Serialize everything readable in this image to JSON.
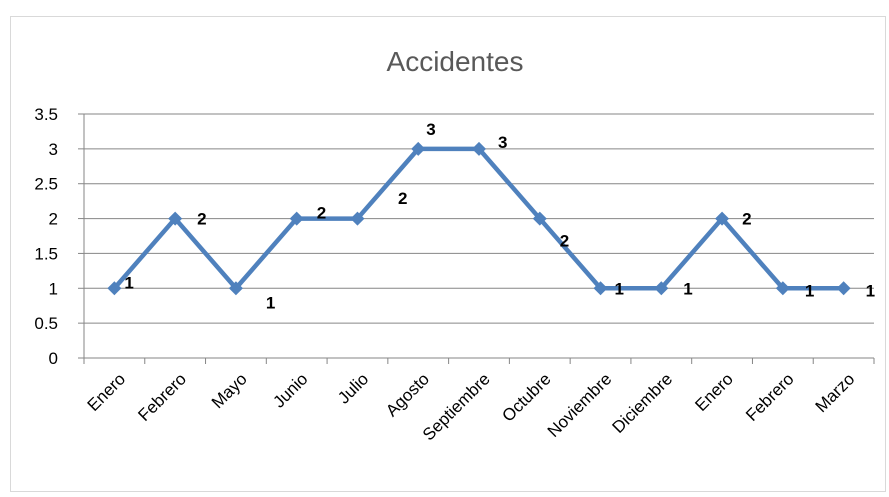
{
  "chart_data": {
    "type": "line",
    "title": "Accidentes",
    "xlabel": "",
    "ylabel": "",
    "categories": [
      "Enero",
      "Febrero",
      "Mayo",
      "Junio",
      "Julio",
      "Agosto",
      "Septiembre",
      "Octubre",
      "Noviembre",
      "Diciembre",
      "Enero",
      "Febrero",
      "Marzo"
    ],
    "series": [
      {
        "values": [
          1,
          2,
          1,
          2,
          2,
          3,
          3,
          2,
          1,
          1,
          2,
          1,
          1
        ]
      }
    ],
    "data_labels": [
      "1",
      "2",
      "1",
      "2",
      "2",
      "3",
      "3",
      "2",
      "1",
      "1",
      "2",
      "1",
      "1"
    ],
    "ylim": [
      0,
      3.5
    ],
    "yticks": [
      "0",
      "0.5",
      "1",
      "1.5",
      "2",
      "2.5",
      "3",
      "3.5"
    ],
    "grid": true,
    "legend": "none",
    "colors": {
      "line": "#4f81bd",
      "grid": "#868686",
      "axis": "#868686"
    }
  }
}
